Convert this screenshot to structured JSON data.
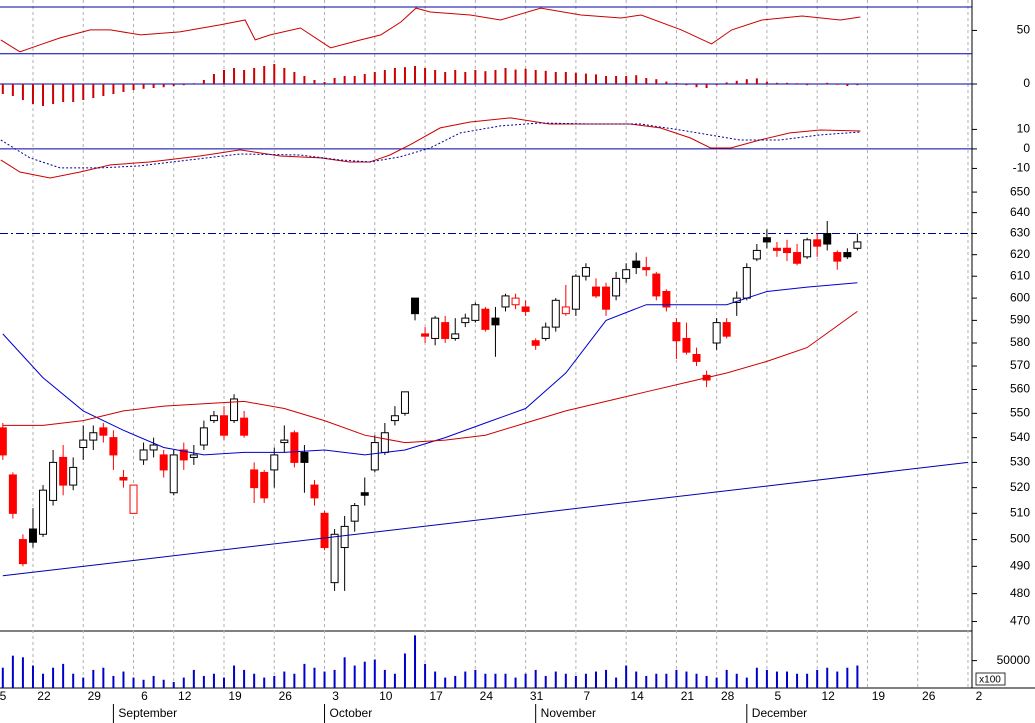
{
  "chart_data": [
    {
      "type": "line",
      "ylim": [
        23,
        76
      ],
      "yticks": [
        50
      ],
      "hlines": [
        70,
        30
      ],
      "series": [
        {
          "color": "#cc0000",
          "x": [
            1.8,
            3.7,
            5.7,
            7.7,
            10.7,
            12.7,
            15.7,
            19.6,
            23.6,
            26.1,
            27.1,
            28.6,
            31.6,
            34.6,
            37.6,
            39.6,
            41.6,
            43.1,
            44.5,
            48.5,
            51.5,
            55.5,
            59.5,
            63.5,
            65.5,
            69.5,
            72.5,
            74.5,
            77.5,
            81.5,
            85.3,
            87.3
          ],
          "values": [
            41.9,
            31.7,
            37.7,
            43.6,
            50.4,
            50.4,
            46.2,
            48.7,
            54.7,
            58.9,
            41.9,
            46.2,
            52.1,
            35.1,
            41.9,
            46.2,
            57.2,
            69.1,
            65.7,
            63.2,
            58.9,
            69.1,
            63.2,
            60.6,
            63.2,
            50.4,
            38.5,
            50.4,
            58.9,
            62.3,
            58.9,
            61.5
          ]
        }
      ]
    },
    {
      "type": "bar",
      "ylim": [
        -5.5,
        5.5
      ],
      "yticks": [
        0
      ],
      "hlines": [
        0
      ],
      "color": "#cc0000",
      "x": [
        2,
        3,
        4,
        5,
        6,
        7,
        8,
        9,
        10,
        11,
        12,
        13,
        14,
        15,
        16,
        17,
        18,
        19,
        20,
        21,
        22,
        23,
        24,
        25,
        26,
        27,
        28,
        29,
        30,
        31,
        32,
        33,
        34,
        35,
        36,
        37,
        38,
        39,
        40,
        41,
        42,
        43,
        44,
        45,
        46,
        47,
        48,
        49,
        50,
        51,
        52,
        53,
        54,
        55,
        56,
        57,
        58,
        59,
        60,
        61,
        62,
        63,
        64,
        65,
        66,
        67,
        68,
        69,
        70,
        71,
        72,
        73,
        74,
        75,
        76,
        77,
        78,
        79,
        80,
        81,
        82,
        83,
        84,
        85,
        86,
        87
      ],
      "values": [
        -2.5,
        -3,
        -4,
        -5,
        -5.5,
        -5,
        -4.5,
        -4.5,
        -4,
        -3.5,
        -3,
        -2.5,
        -2,
        -1.5,
        -1.2,
        -1,
        -0.8,
        -0.5,
        -0.3,
        0.2,
        1,
        2.5,
        3.5,
        4,
        3.5,
        4,
        4.5,
        5,
        4,
        3,
        2,
        1,
        0.5,
        1.5,
        2,
        2,
        2.5,
        3,
        3.5,
        4,
        4.2,
        4.5,
        4,
        3.5,
        3,
        3.5,
        3,
        3.5,
        3.2,
        3.5,
        4,
        3.6,
        3.8,
        3.5,
        3.3,
        3,
        3,
        2.8,
        2.6,
        2.4,
        2,
        2,
        2,
        2.2,
        1.5,
        1.2,
        0.6,
        0.3,
        -0.3,
        -0.8,
        -1,
        -0.3,
        0.4,
        0.8,
        1.2,
        1.4,
        0.6,
        0.3,
        0.3,
        0.2,
        -0.3,
        0.1,
        0.3,
        -0.2,
        -0.5,
        -0.3
      ]
    },
    {
      "type": "line",
      "ylim": [
        -19,
        22
      ],
      "yticks": [
        10,
        0,
        -10
      ],
      "hlines": [
        0
      ],
      "series": [
        {
          "color": "#cc0000",
          "x": [
            1.8,
            3.7,
            6.7,
            9.7,
            12.7,
            16.6,
            21.6,
            25.6,
            29.6,
            33.6,
            36.5,
            38.5,
            40.5,
            42.5,
            45.5,
            48.5,
            52.5,
            56.4,
            60.4,
            64.4,
            67.4,
            70.4,
            72.4,
            74.4,
            77.3,
            80.3,
            83.3,
            87.3
          ],
          "values": [
            -5.6,
            -11.8,
            -14.9,
            -11.8,
            -8.2,
            -6.7,
            -3.6,
            -0.5,
            -3.6,
            -4.6,
            -6.7,
            -6.7,
            -3.1,
            2.1,
            10.8,
            13.8,
            15.9,
            12.8,
            12.8,
            12.8,
            10.8,
            5.6,
            0.5,
            0.5,
            4.6,
            8.2,
            9.7,
            9.2
          ]
        },
        {
          "color": "#000099",
          "dashed": true,
          "x": [
            1.8,
            4.7,
            7.7,
            11.7,
            15.6,
            20.6,
            25.6,
            31.6,
            35.5,
            38.5,
            41.5,
            44.5,
            47.5,
            51.5,
            55.4,
            60.4,
            65.4,
            69.4,
            73.4,
            75.3,
            79.3,
            83.3,
            87.3
          ],
          "values": [
            4.6,
            -4.6,
            -9.7,
            -9.7,
            -8.7,
            -5.6,
            -2.6,
            -3.1,
            -5.6,
            -6.7,
            -4.1,
            0.5,
            8.2,
            11.8,
            13.3,
            12.8,
            12.8,
            9.7,
            6.2,
            4.6,
            4.6,
            7.2,
            8.7
          ]
        }
      ]
    },
    {
      "type": "candlestick",
      "log_scale": true,
      "ylim": [
        467,
        653
      ],
      "yticks": [
        650,
        640,
        630,
        620,
        610,
        600,
        590,
        580,
        570,
        560,
        550,
        540,
        530,
        520,
        510,
        500,
        490,
        480,
        470
      ],
      "hlines": [
        630
      ],
      "higher_color": "#000000",
      "lower_color": "#ff0000",
      "x": [
        2,
        3,
        4,
        5,
        6,
        7,
        8,
        9,
        10,
        11,
        12,
        13,
        14,
        15,
        16,
        17,
        18,
        19,
        20,
        21,
        22,
        23,
        24,
        25,
        26,
        27,
        28,
        29,
        30,
        31,
        32,
        33,
        34,
        35,
        36,
        37,
        38,
        39,
        40,
        41,
        42,
        43,
        44,
        45,
        46,
        47,
        48,
        49,
        50,
        51,
        52,
        53,
        54,
        55,
        56,
        57,
        58,
        59,
        60,
        61,
        62,
        63,
        64,
        65,
        66,
        67,
        68,
        69,
        70,
        71,
        72,
        73,
        74,
        75,
        76,
        77,
        78,
        79,
        80,
        81,
        82,
        83,
        84,
        85,
        86,
        87
      ],
      "open": [
        544,
        525,
        500,
        504,
        502,
        515,
        532,
        521,
        536,
        539,
        544,
        540,
        524,
        510,
        531,
        535,
        533,
        518,
        535,
        532,
        537,
        547,
        549,
        547,
        548,
        527,
        526,
        527,
        538,
        542,
        534,
        521,
        510,
        484,
        497,
        507,
        518,
        527,
        534,
        547,
        550,
        600,
        584,
        582,
        589,
        582,
        589,
        590,
        595,
        591,
        596,
        597,
        596,
        581,
        582,
        587,
        593,
        595,
        610,
        605,
        605,
        601,
        609,
        617,
        614,
        611,
        603,
        589,
        582,
        575,
        566,
        580,
        589,
        598,
        600,
        618,
        628,
        623,
        623,
        621,
        619,
        627,
        630,
        621,
        621,
        623
      ],
      "high": [
        546,
        526,
        502,
        512,
        521,
        535,
        537,
        532,
        545,
        545,
        546,
        543,
        527,
        521,
        538,
        540,
        535,
        535,
        538,
        537,
        547,
        551,
        553,
        558,
        551,
        530,
        527,
        536,
        545,
        543,
        537,
        523,
        511,
        504,
        509,
        514,
        524,
        541,
        546,
        553,
        559,
        600,
        587,
        592,
        592,
        591,
        593,
        598,
        596,
        596,
        602,
        602,
        599,
        582,
        589,
        600,
        606,
        611,
        616,
        609,
        607,
        612,
        616,
        621,
        619,
        612,
        604,
        591,
        589,
        578,
        568,
        591,
        591,
        603,
        616,
        625,
        632,
        626,
        627,
        625,
        628,
        630,
        636,
        622,
        623,
        630
      ],
      "low": [
        531,
        508,
        490,
        497,
        501,
        513,
        517,
        519,
        531,
        535,
        538,
        527,
        520,
        510,
        529,
        532,
        524,
        517,
        527,
        529,
        535,
        546,
        539,
        546,
        540,
        514,
        514,
        520,
        534,
        528,
        518,
        513,
        496,
        481,
        481,
        503,
        513,
        526,
        533,
        545,
        549,
        590,
        580,
        579,
        580,
        581,
        587,
        589,
        585,
        574,
        594,
        595,
        592,
        577,
        581,
        585,
        592,
        592,
        608,
        600,
        592,
        599,
        607,
        611,
        610,
        599,
        594,
        573,
        575,
        570,
        561,
        577,
        582,
        592,
        599,
        617,
        623,
        619,
        617,
        615,
        618,
        619,
        622,
        613,
        618,
        622
      ],
      "close": [
        533,
        510,
        491,
        499,
        519,
        530,
        521,
        528,
        539,
        542,
        541,
        533,
        523,
        521,
        535,
        537,
        527,
        533,
        531,
        533,
        544,
        549,
        541,
        556,
        541,
        520,
        516,
        533,
        539,
        530,
        530,
        516,
        497,
        502,
        505,
        513,
        517,
        538,
        542,
        549,
        559,
        593,
        583,
        591,
        582,
        584,
        591,
        597,
        586,
        588,
        601,
        600,
        594,
        579,
        587,
        599,
        596,
        610,
        614,
        601,
        595,
        609,
        613,
        614,
        613,
        601,
        596,
        581,
        576,
        572,
        564,
        589,
        583,
        600,
        614,
        622,
        626,
        622,
        621,
        616,
        627,
        624,
        625,
        617,
        619,
        626
      ],
      "series": [
        {
          "color": "#0000cc",
          "x": [
            2,
            6,
            10,
            14,
            18,
            22,
            26,
            30,
            34,
            38,
            42,
            46,
            50,
            54,
            58,
            62,
            66,
            70,
            74,
            78,
            82,
            87
          ],
          "values": [
            584,
            565,
            551,
            543,
            536,
            533,
            534,
            534,
            535,
            533,
            535,
            540,
            546,
            552,
            567,
            590,
            597,
            597,
            597,
            603,
            605,
            607
          ]
        },
        {
          "color": "#cc0000",
          "x": [
            2,
            6,
            10,
            14,
            18,
            22,
            26,
            30,
            34,
            38,
            42,
            46,
            50,
            54,
            58,
            62,
            66,
            70,
            74,
            78,
            82,
            87
          ],
          "values": [
            545,
            545,
            547,
            551,
            553,
            554,
            555,
            552,
            547,
            541,
            538,
            539,
            541,
            546,
            551,
            555,
            559,
            563,
            567,
            572,
            578,
            594
          ]
        },
        {
          "color": "#0000aa",
          "x": [
            2,
            98
          ],
          "values": [
            486.5,
            530
          ]
        }
      ]
    },
    {
      "type": "bar",
      "ylim": [
        0,
        104000
      ],
      "yticks": [
        50000
      ],
      "unit_label": "x100",
      "color": "#0000cc",
      "x": [
        2,
        3,
        4,
        5,
        6,
        7,
        8,
        9,
        10,
        11,
        12,
        13,
        14,
        15,
        16,
        17,
        18,
        19,
        20,
        21,
        22,
        23,
        24,
        25,
        26,
        27,
        28,
        29,
        30,
        31,
        32,
        33,
        34,
        35,
        36,
        37,
        38,
        39,
        40,
        41,
        42,
        43,
        44,
        45,
        46,
        47,
        48,
        49,
        50,
        51,
        52,
        53,
        54,
        55,
        56,
        57,
        58,
        59,
        60,
        61,
        62,
        63,
        64,
        65,
        66,
        67,
        68,
        69,
        70,
        71,
        72,
        73,
        74,
        75,
        76,
        77,
        78,
        79,
        80,
        81,
        82,
        83,
        84,
        85,
        86,
        87
      ],
      "values": [
        37000,
        59000,
        56000,
        41000,
        26000,
        37000,
        44000,
        26000,
        19000,
        33000,
        37000,
        22000,
        30000,
        19000,
        15000,
        22000,
        15000,
        11000,
        19000,
        33000,
        22000,
        26000,
        19000,
        41000,
        33000,
        26000,
        19000,
        22000,
        30000,
        26000,
        44000,
        37000,
        30000,
        33000,
        56000,
        41000,
        48000,
        52000,
        33000,
        26000,
        63000,
        96000,
        44000,
        30000,
        19000,
        22000,
        30000,
        33000,
        26000,
        26000,
        26000,
        19000,
        26000,
        33000,
        22000,
        30000,
        26000,
        22000,
        26000,
        30000,
        33000,
        19000,
        41000,
        30000,
        22000,
        26000,
        26000,
        33000,
        30000,
        26000,
        22000,
        19000,
        33000,
        26000,
        19000,
        37000,
        33000,
        30000,
        30000,
        26000,
        26000,
        33000,
        37000,
        30000,
        37000,
        41000
      ],
      "xlim": [
        1.72,
        98.4
      ],
      "xticks": [
        {
          "value": 0,
          "label": "5"
        },
        {
          "value": 5,
          "label": "22"
        },
        {
          "value": 10,
          "label": "29"
        },
        {
          "value": 15,
          "label": "6"
        },
        {
          "value": 19,
          "label": "12"
        },
        {
          "value": 24,
          "label": "19"
        },
        {
          "value": 29,
          "label": "26"
        },
        {
          "value": 34,
          "label": "3"
        },
        {
          "value": 39,
          "label": "10"
        },
        {
          "value": 44,
          "label": "17"
        },
        {
          "value": 49,
          "label": "24"
        },
        {
          "value": 54,
          "label": "31"
        },
        {
          "value": 59,
          "label": "7"
        },
        {
          "value": 64,
          "label": "14"
        },
        {
          "value": 69,
          "label": "21"
        },
        {
          "value": 73,
          "label": "28"
        },
        {
          "value": 78,
          "label": "5"
        },
        {
          "value": 83,
          "label": "12"
        },
        {
          "value": 88,
          "label": "19"
        },
        {
          "value": 93,
          "label": "26"
        },
        {
          "value": 98,
          "label": "2"
        }
      ],
      "months": [
        {
          "value": 13,
          "label": "September"
        },
        {
          "value": 34,
          "label": "October"
        },
        {
          "value": 55,
          "label": "November"
        },
        {
          "value": 76,
          "label": "December"
        }
      ]
    }
  ]
}
